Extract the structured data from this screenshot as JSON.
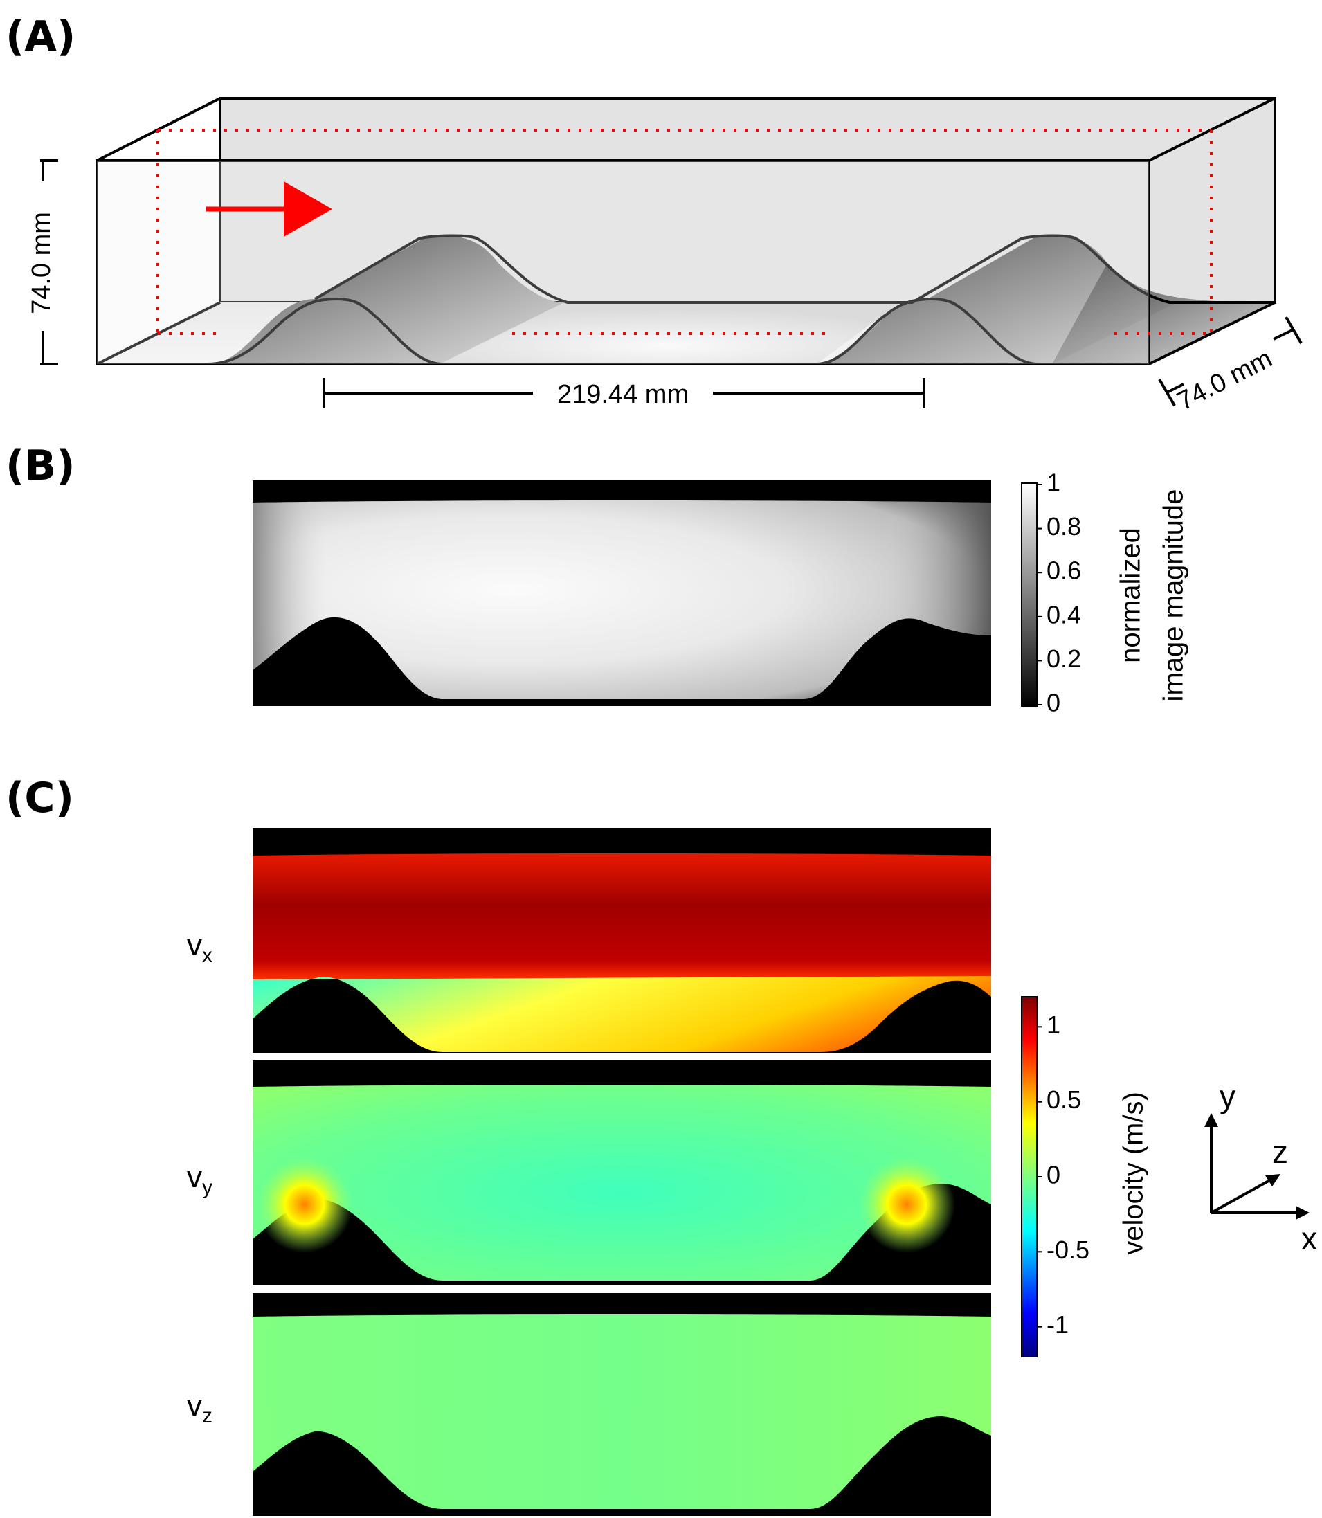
{
  "panels": {
    "a": {
      "label": "(A)"
    },
    "b": {
      "label": "(B)"
    },
    "c": {
      "label": "(C)"
    }
  },
  "panel_a": {
    "height_dim": "74.0 mm",
    "depth_dim": "74.0 mm",
    "length_dim": "219.44 mm"
  },
  "panel_b": {
    "colorbar": {
      "title_line1": "normalized",
      "title_line2": "image magnitude",
      "ticks": [
        "1",
        "0.8",
        "0.6",
        "0.4",
        "0.2",
        "0"
      ],
      "tick_values": [
        1,
        0.8,
        0.6,
        0.4,
        0.2,
        0
      ],
      "range": [
        0,
        1
      ]
    }
  },
  "panel_c": {
    "rows": [
      {
        "base": "v",
        "sub": "x"
      },
      {
        "base": "v",
        "sub": "y"
      },
      {
        "base": "v",
        "sub": "z"
      }
    ],
    "colorbar": {
      "title": "velocity (m/s)",
      "ticks": [
        "1",
        "0.5",
        "0",
        "-0.5",
        "-1"
      ],
      "tick_values": [
        1,
        0.5,
        0,
        -0.5,
        -1
      ],
      "range": [
        -1.2,
        1.2
      ]
    },
    "axes": {
      "x": "x",
      "y": "y",
      "z": "z"
    }
  },
  "colors": {
    "arrow": "#ff0000",
    "guide_dots": "#ff0000",
    "outline": "#000000"
  }
}
